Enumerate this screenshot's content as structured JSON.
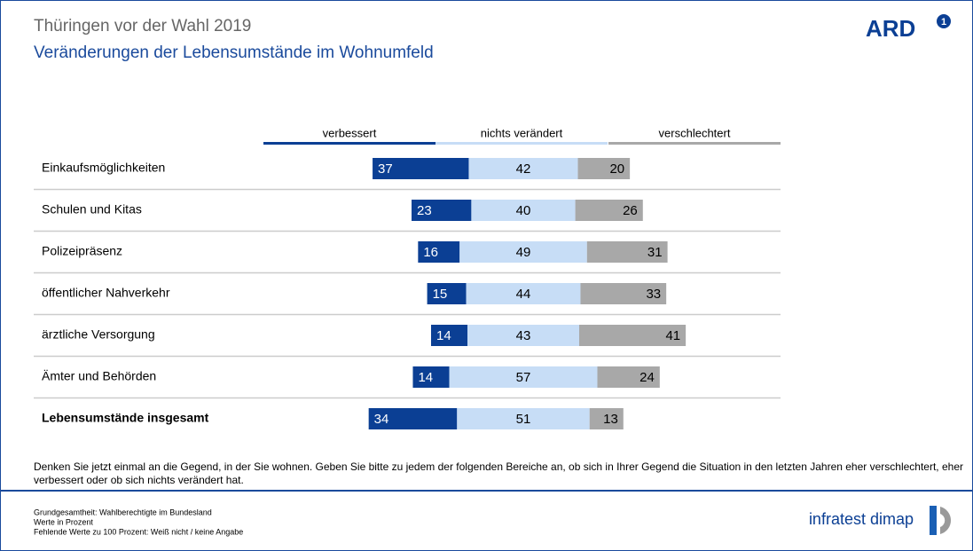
{
  "chart_data": {
    "type": "bar",
    "title": "Thüringen vor der Wahl 2019",
    "subtitle": "Veränderungen der Lebensumstände im Wohnumfeld",
    "categories": [
      "Einkaufsmöglichkeiten",
      "Schulen und Kitas",
      "Polizeipräsenz",
      "öffentlicher Nahverkehr",
      "ärztliche Versorgung",
      "Ämter und Behörden",
      "Lebensumstände insgesamt"
    ],
    "series": [
      {
        "name": "verbessert",
        "color": "#0b3f94",
        "values": [
          37,
          23,
          16,
          15,
          14,
          14,
          34
        ]
      },
      {
        "name": "nichts verändert",
        "color": "#c7ddf6",
        "values": [
          42,
          40,
          49,
          44,
          43,
          57,
          51
        ]
      },
      {
        "name": "verschlechtert",
        "color": "#a8a8a8",
        "values": [
          20,
          26,
          31,
          33,
          41,
          24,
          13
        ]
      }
    ],
    "question": "Denken Sie jetzt einmal an die Gegend, in der Sie wohnen. Geben Sie bitte zu jedem der folgenden Bereiche an, ob sich in Ihrer Gegend die Situation in den letzten Jahren eher verschlechtert, eher verbessert oder ob sich nichts verändert hat.",
    "notes": [
      "Grundgesamtheit: Wahlberechtigte im Bundesland",
      "Werte in Prozent",
      "Fehlende Werte zu 100 Prozent: Weiß nicht / keine Angabe"
    ],
    "logo": "ARD",
    "logo_badge": "1",
    "institute": "infratest dimap"
  }
}
